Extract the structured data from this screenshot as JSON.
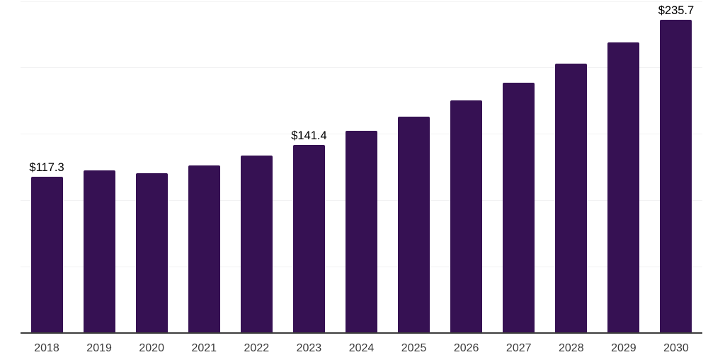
{
  "chart_data": {
    "type": "bar",
    "title": "",
    "xlabel": "",
    "ylabel": "",
    "categories": [
      "2018",
      "2019",
      "2020",
      "2021",
      "2022",
      "2023",
      "2024",
      "2025",
      "2026",
      "2027",
      "2028",
      "2029",
      "2030"
    ],
    "values": [
      117.3,
      121.9,
      119.8,
      125.7,
      133.1,
      141.4,
      151.9,
      162.5,
      174.7,
      188.0,
      202.4,
      218.4,
      235.7
    ],
    "value_labels": [
      {
        "category": "2018",
        "text": "$117.3"
      },
      {
        "category": "2023",
        "text": "$141.4"
      },
      {
        "category": "2030",
        "text": "$235.7"
      }
    ],
    "ylim": [
      0,
      250
    ],
    "grid_step": 50,
    "grid": "horizontal-only",
    "y_tick_labels_visible": false,
    "legend": "none",
    "colors": {
      "bar": "#361153",
      "axis_line": "#3c3c3c",
      "gridline": "#f2f2f3",
      "value_label": "#000000",
      "tick_label": "#3b3b3b",
      "background": "#ffffff"
    }
  }
}
